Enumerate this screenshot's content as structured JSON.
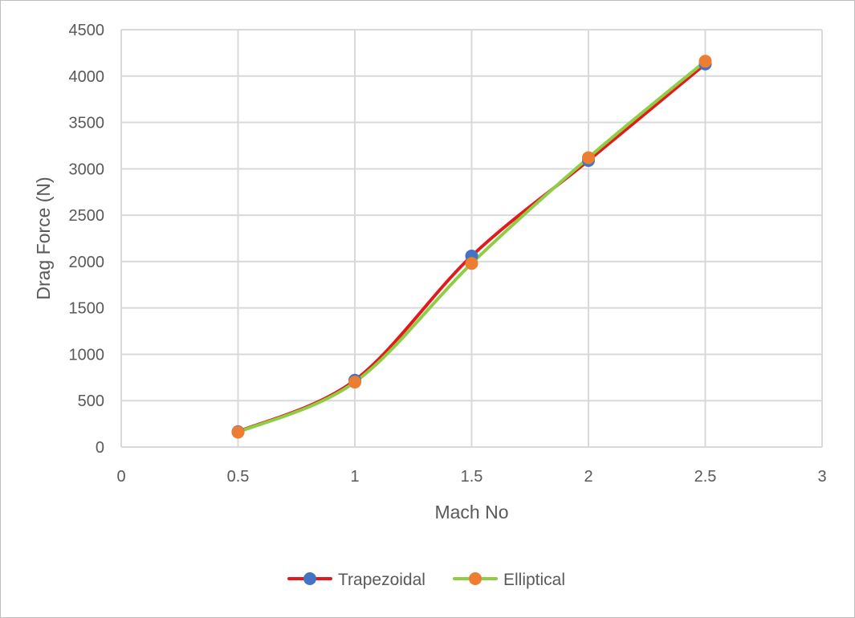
{
  "chart_data": {
    "type": "line",
    "title": "",
    "xlabel": "Mach No",
    "ylabel": "Drag Force (N)",
    "xlim": [
      0,
      3
    ],
    "ylim": [
      0,
      4500
    ],
    "xticks": [
      0,
      0.5,
      1,
      1.5,
      2,
      2.5,
      3
    ],
    "xtick_labels": [
      "0",
      "0.5",
      "1",
      "1.5",
      "2",
      "2.5",
      "3"
    ],
    "yticks": [
      0,
      500,
      1000,
      1500,
      2000,
      2500,
      3000,
      3500,
      4000,
      4500
    ],
    "ytick_labels": [
      "0",
      "500",
      "1000",
      "1500",
      "2000",
      "2500",
      "3000",
      "3500",
      "4000",
      "4500"
    ],
    "grid": true,
    "legend_position": "bottom",
    "smooth": true,
    "series": [
      {
        "name": "Trapezoidal",
        "line_color": "#e31a1c",
        "marker_color": "#4472c4",
        "x": [
          0.5,
          1,
          1.5,
          2,
          2.5
        ],
        "y": [
          165,
          720,
          2060,
          3090,
          4130
        ]
      },
      {
        "name": "Elliptical",
        "line_color": "#8fcd45",
        "marker_color": "#ed7d31",
        "x": [
          0.5,
          1,
          1.5,
          2,
          2.5
        ],
        "y": [
          160,
          700,
          1980,
          3120,
          4160
        ]
      }
    ]
  }
}
